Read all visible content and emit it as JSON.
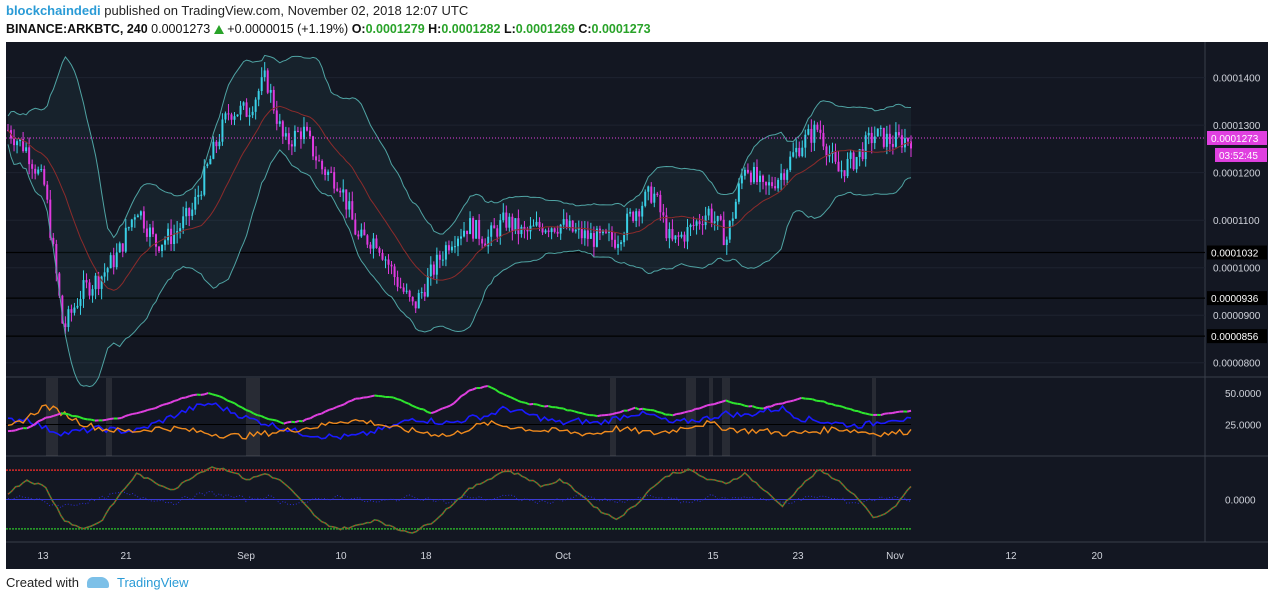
{
  "header": {
    "user": "blockchaindedi",
    "published_text": "published on TradingView.com, November 02, 2018 12:07 UTC",
    "symbol": "BINANCE:ARKBTC, 240",
    "last": "0.0001273",
    "change": "+0.0000015 (+1.19%)",
    "o_label": "O:",
    "o_value": "0.0001279",
    "h_label": "H:",
    "h_value": "0.0001282",
    "l_label": "L:",
    "l_value": "0.0001269",
    "c_label": "C:",
    "c_value": "0.0001273"
  },
  "footer": {
    "created_with": "Created with",
    "brand": "TradingView"
  },
  "colors": {
    "background": "#131722",
    "up_candle": "#3ad0e6",
    "down_candle": "#e03ae0",
    "bollinger": "#4fa3a3",
    "basis": "#8b2b2b",
    "price_line": "#e040e0",
    "di_plus": "#1a1aff",
    "di_minus": "#f08a1d",
    "adx_up": "#2ee62e",
    "adx_down": "#e040e0"
  },
  "chart_data": {
    "type": "candlestick",
    "price_axis_labels": [
      "0.0001400",
      "0.0001300",
      "0.0001200",
      "0.0001100",
      "0.0001000",
      "0.0000900",
      "0.0000800"
    ],
    "ylim": [
      7.7e-05,
      0.0001475
    ],
    "horizontal_levels": [
      "0.0001032",
      "0.0000936",
      "0.0000856"
    ],
    "last_price_tag": "0.0001273",
    "countdown_tag": "03:52:45",
    "time_labels": [
      "13",
      "21",
      "Sep",
      "10",
      "18",
      "Oct",
      "15",
      "23",
      "Nov",
      "12",
      "20"
    ],
    "price_series": [
      [
        "Aug 9",
        0.000129
      ],
      [
        "Aug 10",
        0.000125
      ],
      [
        "Aug 11",
        0.000117
      ],
      [
        "Aug 12",
        8.7e-05
      ],
      [
        "Aug 13",
        9.5e-05
      ],
      [
        "Aug 14",
        9.8e-05
      ],
      [
        "Aug 15",
        0.000103
      ],
      [
        "Aug 17",
        0.000113
      ],
      [
        "Aug 19",
        0.000105
      ],
      [
        "Aug 21",
        0.000107
      ],
      [
        "Aug 23",
        0.000112
      ],
      [
        "Aug 25",
        0.000123
      ],
      [
        "Aug 27",
        0.000133
      ],
      [
        "Aug 29",
        0.000133
      ],
      [
        "Aug 30",
        0.00014
      ],
      [
        "Aug 31",
        0.000126
      ],
      [
        "Sep 1",
        0.000129
      ],
      [
        "Sep 3",
        0.000121
      ],
      [
        "Sep 5",
        0.000118
      ],
      [
        "Sep 6",
        0.000106
      ],
      [
        "Sep 8",
        0.000106
      ],
      [
        "Sep 10",
        9.8e-05
      ],
      [
        "Sep 12",
        9.15e-05
      ],
      [
        "Sep 13",
        9.9e-05
      ],
      [
        "Sep 15",
        0.000106
      ],
      [
        "Sep 17",
        0.000109
      ],
      [
        "Sep 19",
        0.000106
      ],
      [
        "Sep 21",
        0.00011
      ],
      [
        "Sep 23",
        0.000107
      ],
      [
        "Sep 25",
        0.000109
      ],
      [
        "Sep 27",
        0.000109
      ],
      [
        "Sep 29",
        0.000107
      ],
      [
        "Oct 1",
        0.000106
      ],
      [
        "Oct 3",
        0.000106
      ],
      [
        "Oct 5",
        0.000112
      ],
      [
        "Oct 7",
        0.000116
      ],
      [
        "Oct 9",
        0.000105
      ],
      [
        "Oct 11",
        0.000108
      ],
      [
        "Oct 13",
        0.000112
      ],
      [
        "Oct 15",
        0.000106
      ],
      [
        "Oct 17",
        0.000122
      ],
      [
        "Oct 19",
        0.000116
      ],
      [
        "Oct 21",
        0.00012
      ],
      [
        "Oct 23",
        0.000126
      ],
      [
        "Oct 25",
        0.0001295
      ],
      [
        "Oct 27",
        0.00012
      ],
      [
        "Oct 29",
        0.000123
      ],
      [
        "Oct 30",
        0.000128
      ],
      [
        "Nov 1",
        0.0001265
      ],
      [
        "Nov 2",
        0.0001273
      ]
    ],
    "indicator1": {
      "axis_labels": [
        "50.0000",
        "25.0000"
      ],
      "ylim": [
        0,
        62
      ],
      "series": [
        {
          "values": [
            28,
            30,
            22,
            18,
            20,
            22,
            20,
            20,
            26,
            32,
            38,
            42,
            36,
            30,
            26,
            22,
            18,
            16,
            15,
            16,
            20,
            24,
            30,
            28,
            26,
            30,
            32,
            38,
            34,
            30,
            26,
            28,
            26,
            30,
            34,
            32,
            26,
            28,
            30,
            34,
            32,
            36,
            38,
            30,
            28,
            26,
            24,
            26,
            30,
            28
          ]
        },
        {
          "values": [
            22,
            30,
            40,
            34,
            26,
            22,
            20,
            20,
            22,
            22,
            20,
            18,
            16,
            16,
            18,
            20,
            22,
            24,
            28,
            28,
            26,
            22,
            20,
            18,
            16,
            22,
            26,
            24,
            22,
            20,
            20,
            18,
            18,
            22,
            20,
            18,
            20,
            24,
            26,
            22,
            20,
            20,
            18,
            18,
            20,
            22,
            20,
            18,
            18,
            20
          ]
        },
        {
          "values": [
            20,
            22,
            30,
            34,
            30,
            28,
            30,
            34,
            38,
            44,
            48,
            50,
            44,
            36,
            30,
            26,
            28,
            34,
            40,
            46,
            48,
            46,
            40,
            34,
            40,
            52,
            56,
            48,
            42,
            40,
            38,
            34,
            32,
            34,
            38,
            36,
            32,
            36,
            40,
            44,
            40,
            38,
            42,
            46,
            44,
            40,
            36,
            32,
            34,
            36
          ]
        }
      ]
    },
    "indicator2": {
      "axis_labels": [
        "0.0000"
      ],
      "ylim": [
        -1.3,
        1.3
      ],
      "series": [
        {
          "values": [
            0.2,
            0.6,
            0.4,
            -0.6,
            -0.9,
            -0.7,
            0.1,
            0.8,
            0.5,
            0.3,
            0.7,
            1.0,
            0.9,
            0.6,
            0.8,
            0.5,
            -0.1,
            -0.7,
            -0.9,
            -0.8,
            -0.6,
            -0.9,
            -1.0,
            -0.7,
            -0.2,
            0.3,
            0.6,
            0.9,
            0.7,
            0.4,
            0.6,
            0.2,
            -0.3,
            -0.6,
            -0.2,
            0.4,
            0.8,
            0.9,
            0.6,
            0.5,
            0.8,
            0.3,
            -0.2,
            0.4,
            0.9,
            0.6,
            0.1,
            -0.6,
            -0.3,
            0.4
          ]
        },
        {
          "values": [
            0.0,
            0.1,
            -0.1,
            -0.2,
            -0.1,
            0.0,
            0.2,
            0.1,
            0.0,
            -0.1,
            0.1,
            0.2,
            0.1,
            0.0,
            0.1,
            -0.1,
            -0.1,
            0.0,
            0.1,
            0.0,
            -0.1,
            0.0,
            0.1,
            0.0,
            -0.1,
            0.1,
            0.0,
            0.1,
            0.0,
            -0.1,
            0.0,
            0.1,
            0.0,
            -0.1,
            0.0,
            0.1,
            0.0,
            -0.1,
            0.1,
            0.0,
            0.1,
            0.0,
            -0.1,
            0.0,
            0.1,
            0.0,
            -0.1,
            0.0,
            0.1,
            0.0
          ]
        }
      ],
      "levels": [
        0.9,
        -0.9
      ]
    }
  }
}
